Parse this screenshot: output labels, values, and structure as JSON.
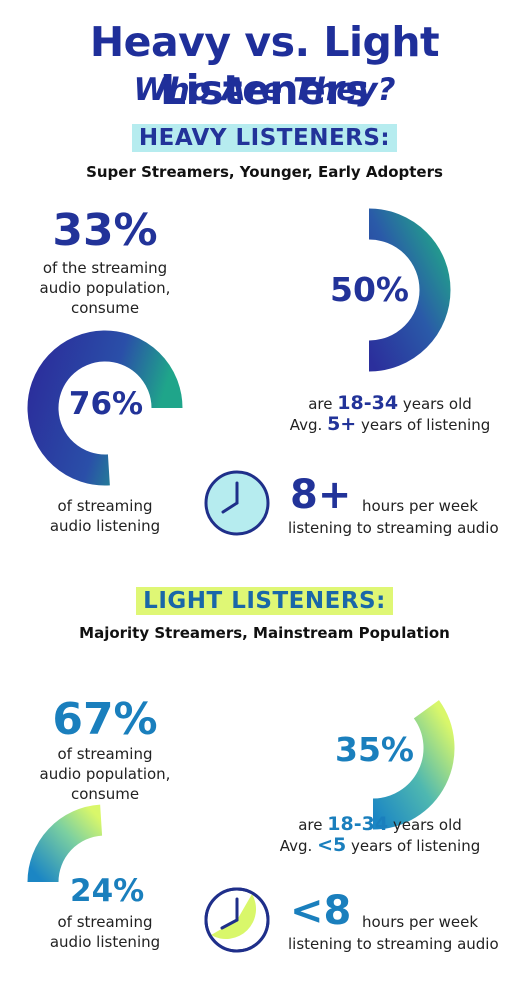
{
  "title": "Heavy vs. Light Listeners",
  "subtitle": "Who Are They?",
  "heavy": {
    "heading": "HEAVY LISTENERS:",
    "tagline": "Super Streamers, Younger, Early Adopters",
    "population_pct": "33%",
    "population_text": [
      "of the streaming",
      "audio population,",
      "consume"
    ],
    "listening_pct": "76%",
    "listening_value": 0.76,
    "listening_text": [
      "of streaming",
      "audio listening"
    ],
    "age_pct": "50%",
    "age_value": 0.5,
    "age_line1_pre": "are",
    "age_range": "18-34",
    "age_line1_post": "years old",
    "age_line2_pre": "Avg.",
    "age_years": "5+",
    "age_line2_post": "years of listening",
    "hours": "8+",
    "hours_line1": "hours per week",
    "hours_line2": "listening to streaming audio",
    "colors": {
      "primary": "#223399",
      "accent": "#1fa58a",
      "badge": "#b6ecef"
    }
  },
  "light": {
    "heading": "LIGHT LISTENERS:",
    "tagline": "Majority Streamers, Mainstream Population",
    "population_pct": "67%",
    "population_text": [
      "of streaming",
      "audio population,",
      "consume"
    ],
    "listening_pct": "24%",
    "listening_value": 0.24,
    "listening_text": [
      "of streaming",
      "audio listening"
    ],
    "age_pct": "35%",
    "age_value": 0.35,
    "age_line1_pre": "are",
    "age_range": "18-34",
    "age_line1_post": "years old",
    "age_line2_pre": "Avg.",
    "age_years": "<5",
    "age_line2_post": "years of listening",
    "hours": "<8",
    "hours_line1": "hours per week",
    "hours_line2": "listening to streaming audio",
    "colors": {
      "primary": "#1a7fbd",
      "accent": "#d9f76a",
      "badge": "#dff775"
    }
  }
}
